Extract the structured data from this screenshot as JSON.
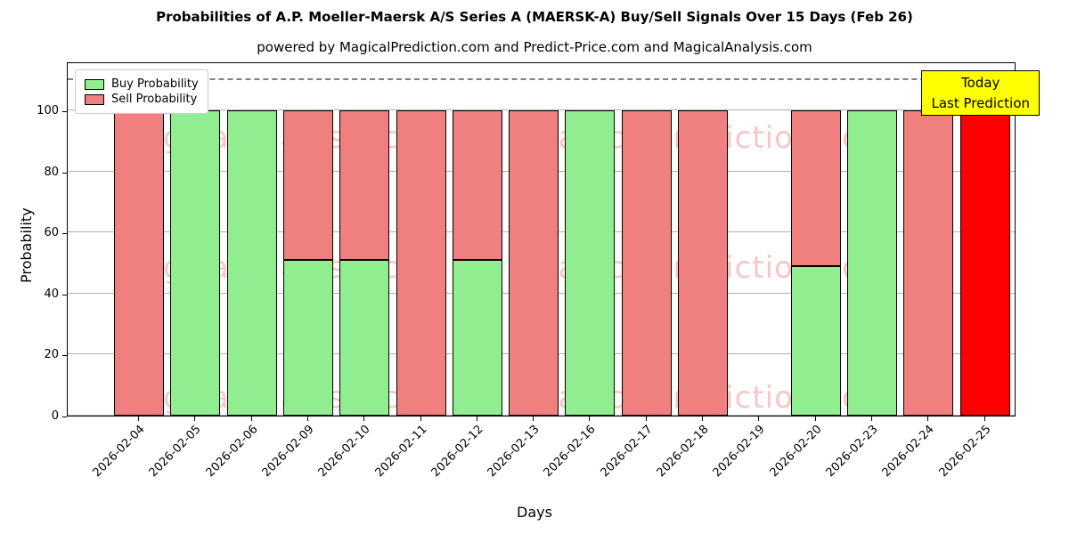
{
  "title": "Probabilities of A.P. Moeller-Maersk A/S Series A (MAERSK-A) Buy/Sell Signals Over 15 Days (Feb 26)",
  "subtitle": "powered by MagicalPrediction.com and Predict-Price.com and MagicalAnalysis.com",
  "legend": {
    "buy": "Buy Probability",
    "sell": "Sell Probability"
  },
  "annotation": {
    "line1": "Today",
    "line2": "Last Prediction"
  },
  "axes": {
    "xlabel": "Days",
    "ylabel": "Probability",
    "yticks": [
      0,
      20,
      40,
      60,
      80,
      100
    ]
  },
  "colors": {
    "buy": "#90ee90",
    "sell": "#f08080",
    "today": "#ff0000",
    "annotation_bg": "#ffff00",
    "grid": "#b0b0b0",
    "dashed_line": "#808080"
  },
  "watermarks": [
    "MagicalAnalysis.com",
    "Magica Prediction.com"
  ],
  "chart_data": {
    "type": "bar",
    "stacked": true,
    "title": "Probabilities of A.P. Moeller-Maersk A/S Series A (MAERSK-A) Buy/Sell Signals Over 15 Days (Feb 26)",
    "xlabel": "Days",
    "ylabel": "Probability",
    "ylim": [
      0,
      116
    ],
    "dashed_line_y": 110,
    "grid": true,
    "legend_position": "upper left",
    "categories": [
      "2026-02-04",
      "2026-02-05",
      "2026-02-06",
      "2026-02-09",
      "2026-02-10",
      "2026-02-11",
      "2026-02-12",
      "2026-02-13",
      "2026-02-16",
      "2026-02-17",
      "2026-02-18",
      "2026-02-19",
      "2026-02-20",
      "2026-02-23",
      "2026-02-24",
      "2026-02-25"
    ],
    "series": [
      {
        "name": "Buy Probability",
        "color": "#90ee90",
        "values": [
          0,
          100,
          100,
          51,
          51,
          0,
          51,
          0,
          100,
          0,
          0,
          0,
          49,
          100,
          0,
          0
        ]
      },
      {
        "name": "Sell Probability",
        "color": "#f08080",
        "values": [
          100,
          0,
          0,
          49,
          49,
          100,
          49,
          100,
          0,
          100,
          100,
          0,
          51,
          0,
          100,
          100
        ]
      }
    ],
    "today_index": 15
  }
}
